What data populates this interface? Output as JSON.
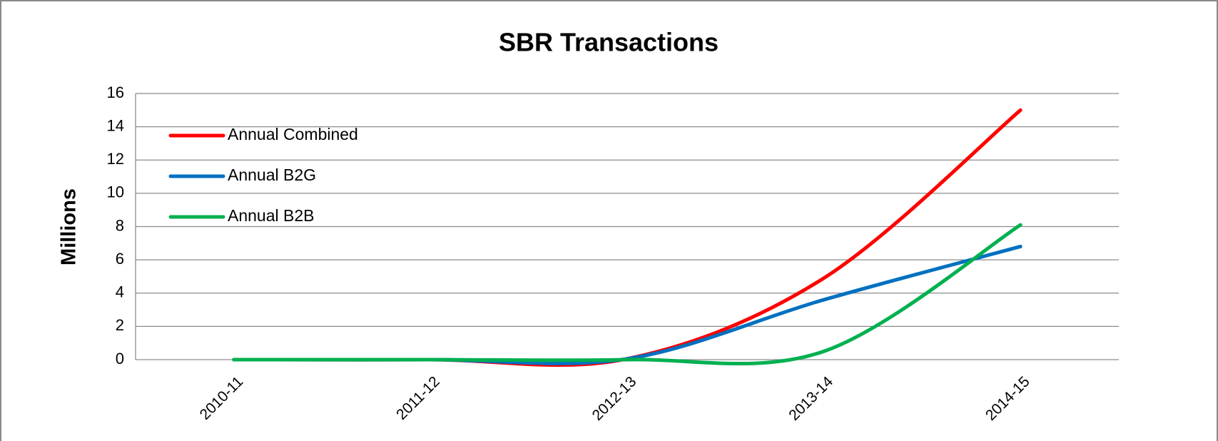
{
  "chart_data": {
    "type": "line",
    "title": "SBR Transactions",
    "y_label": "Millions",
    "categories": [
      "2010-11",
      "2011-12",
      "2012-13",
      "2013-14",
      "2014-15"
    ],
    "series": [
      {
        "name": "Annual Combined",
        "color": "#ff0000",
        "values": [
          0,
          0,
          0.05,
          4.9,
          15
        ]
      },
      {
        "name": "Annual B2G",
        "color": "#0070c0",
        "values": [
          0,
          0,
          0.05,
          3.6,
          6.8
        ]
      },
      {
        "name": "Annual B2B",
        "color": "#00b050",
        "values": [
          0,
          0,
          0,
          0.5,
          8.1
        ]
      }
    ],
    "ylim": [
      0,
      16
    ],
    "yticks": [
      0,
      2,
      4,
      6,
      8,
      10,
      12,
      14,
      16
    ],
    "grid": true,
    "legend": "upper left",
    "smooth": true
  }
}
